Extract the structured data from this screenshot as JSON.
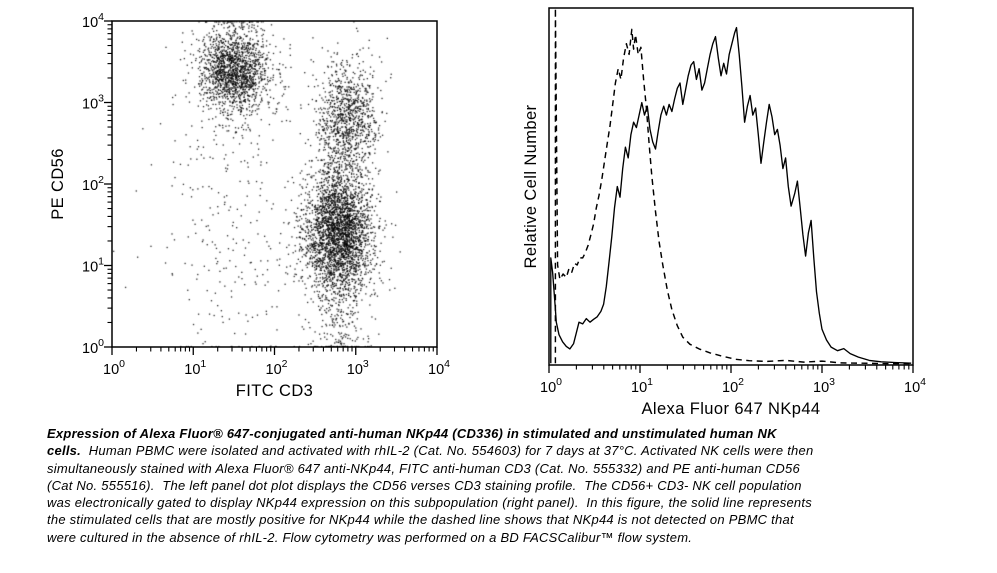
{
  "colors": {
    "ink": "#000000",
    "background": "#ffffff"
  },
  "chart_data": [
    {
      "id": "dot-plot",
      "type": "scatter",
      "xlabel": "FITC CD3",
      "ylabel": "PE CD56",
      "xscale": "log",
      "yscale": "log",
      "xlim": [
        1,
        10000
      ],
      "ylim": [
        1,
        10000
      ],
      "tick_label_base": "10",
      "tick_exponents": [
        0,
        1,
        2,
        3,
        4
      ],
      "grid": false,
      "marker": "dot",
      "seed": 7,
      "clusters": [
        {
          "name": "CD3- CD56+ NK cells (core)",
          "center_log": [
            1.5,
            3.42
          ],
          "sd_log": [
            0.2,
            0.25
          ],
          "count": 1500
        },
        {
          "name": "CD3- CD56+ NK cells (halo)",
          "center_log": [
            1.55,
            3.15
          ],
          "sd_log": [
            0.38,
            0.5
          ],
          "count": 230
        },
        {
          "name": "CD3+ CD56+ T/NKT cells",
          "center_log": [
            2.9,
            2.82
          ],
          "sd_log": [
            0.19,
            0.36
          ],
          "count": 1000
        },
        {
          "name": "CD3+ CD56- T cells (core)",
          "center_log": [
            2.8,
            1.4
          ],
          "sd_log": [
            0.21,
            0.4
          ],
          "count": 2900
        },
        {
          "name": "CD3+ low CD56 pile near axis",
          "center_log": [
            2.78,
            0.18
          ],
          "sd_log": [
            0.18,
            0.28
          ],
          "count": 150
        },
        {
          "name": "scattered background",
          "center_log": [
            1.55,
            1.25
          ],
          "sd_log": [
            0.6,
            0.75
          ],
          "count": 230
        }
      ]
    },
    {
      "id": "histogram",
      "type": "line",
      "xlabel": "Alexa Fluor 647 NKp44",
      "ylabel": "Relative Cell Number",
      "xscale": "log",
      "xlim": [
        1,
        10000
      ],
      "tick_label_base": "10",
      "tick_exponents": [
        0,
        1,
        2,
        3,
        4
      ],
      "grid": false,
      "series": [
        {
          "name": "rhIL-2 stimulated PBMC (solid line)",
          "style": "solid",
          "points": [
            [
              0.02,
              0.005
            ],
            [
              0.02,
              0.3
            ],
            [
              0.04,
              0.26
            ],
            [
              0.06,
              0.19
            ],
            [
              0.08,
              0.12
            ],
            [
              0.11,
              0.085
            ],
            [
              0.15,
              0.065
            ],
            [
              0.19,
              0.052
            ],
            [
              0.23,
              0.045
            ],
            [
              0.27,
              0.06
            ],
            [
              0.3,
              0.09
            ],
            [
              0.33,
              0.12
            ],
            [
              0.37,
              0.115
            ],
            [
              0.41,
              0.13
            ],
            [
              0.45,
              0.12
            ],
            [
              0.49,
              0.128
            ],
            [
              0.53,
              0.135
            ],
            [
              0.57,
              0.15
            ],
            [
              0.6,
              0.17
            ],
            [
              0.63,
              0.22
            ],
            [
              0.66,
              0.29
            ],
            [
              0.69,
              0.36
            ],
            [
              0.72,
              0.44
            ],
            [
              0.75,
              0.5
            ],
            [
              0.78,
              0.47
            ],
            [
              0.81,
              0.55
            ],
            [
              0.84,
              0.61
            ],
            [
              0.87,
              0.58
            ],
            [
              0.9,
              0.645
            ],
            [
              0.93,
              0.68
            ],
            [
              0.96,
              0.665
            ],
            [
              0.99,
              0.7
            ],
            [
              1.02,
              0.735
            ],
            [
              1.05,
              0.7
            ],
            [
              1.08,
              0.725
            ],
            [
              1.11,
              0.66
            ],
            [
              1.14,
              0.625
            ],
            [
              1.17,
              0.605
            ],
            [
              1.2,
              0.655
            ],
            [
              1.23,
              0.7
            ],
            [
              1.26,
              0.725
            ],
            [
              1.29,
              0.7
            ],
            [
              1.32,
              0.73
            ],
            [
              1.35,
              0.71
            ],
            [
              1.38,
              0.745
            ],
            [
              1.41,
              0.775
            ],
            [
              1.44,
              0.79
            ],
            [
              1.47,
              0.73
            ],
            [
              1.5,
              0.77
            ],
            [
              1.53,
              0.81
            ],
            [
              1.56,
              0.84
            ],
            [
              1.59,
              0.85
            ],
            [
              1.62,
              0.8
            ],
            [
              1.65,
              0.83
            ],
            [
              1.68,
              0.77
            ],
            [
              1.71,
              0.79
            ],
            [
              1.74,
              0.83
            ],
            [
              1.77,
              0.87
            ],
            [
              1.8,
              0.9
            ],
            [
              1.83,
              0.92
            ],
            [
              1.86,
              0.86
            ],
            [
              1.89,
              0.81
            ],
            [
              1.92,
              0.845
            ],
            [
              1.95,
              0.815
            ],
            [
              1.98,
              0.87
            ],
            [
              2.01,
              0.9
            ],
            [
              2.04,
              0.93
            ],
            [
              2.06,
              0.945
            ],
            [
              2.09,
              0.87
            ],
            [
              2.12,
              0.78
            ],
            [
              2.15,
              0.68
            ],
            [
              2.18,
              0.725
            ],
            [
              2.21,
              0.755
            ],
            [
              2.24,
              0.7
            ],
            [
              2.27,
              0.72
            ],
            [
              2.3,
              0.645
            ],
            [
              2.33,
              0.565
            ],
            [
              2.36,
              0.625
            ],
            [
              2.39,
              0.68
            ],
            [
              2.42,
              0.73
            ],
            [
              2.45,
              0.695
            ],
            [
              2.48,
              0.645
            ],
            [
              2.51,
              0.66
            ],
            [
              2.54,
              0.615
            ],
            [
              2.57,
              0.55
            ],
            [
              2.6,
              0.58
            ],
            [
              2.63,
              0.5
            ],
            [
              2.66,
              0.445
            ],
            [
              2.7,
              0.48
            ],
            [
              2.73,
              0.515
            ],
            [
              2.76,
              0.44
            ],
            [
              2.79,
              0.365
            ],
            [
              2.82,
              0.305
            ],
            [
              2.85,
              0.37
            ],
            [
              2.88,
              0.405
            ],
            [
              2.91,
              0.3
            ],
            [
              2.94,
              0.205
            ],
            [
              2.97,
              0.145
            ],
            [
              3.0,
              0.1
            ],
            [
              3.05,
              0.07
            ],
            [
              3.1,
              0.05
            ],
            [
              3.17,
              0.04
            ],
            [
              3.24,
              0.046
            ],
            [
              3.31,
              0.032
            ],
            [
              3.4,
              0.022
            ],
            [
              3.52,
              0.013
            ],
            [
              3.65,
              0.009
            ],
            [
              3.8,
              0.007
            ],
            [
              3.98,
              0.005
            ]
          ]
        },
        {
          "name": "unstimulated PBMC control (dashed line)",
          "style": "dashed",
          "points": [
            [
              0.07,
              0.005
            ],
            [
              0.07,
              1.0
            ],
            [
              0.095,
              0.28
            ],
            [
              0.12,
              0.24
            ],
            [
              0.155,
              0.255
            ],
            [
              0.19,
              0.245
            ],
            [
              0.22,
              0.27
            ],
            [
              0.25,
              0.26
            ],
            [
              0.28,
              0.285
            ],
            [
              0.31,
              0.28
            ],
            [
              0.34,
              0.3
            ],
            [
              0.37,
              0.3
            ],
            [
              0.4,
              0.315
            ],
            [
              0.43,
              0.335
            ],
            [
              0.46,
              0.365
            ],
            [
              0.49,
              0.395
            ],
            [
              0.52,
              0.44
            ],
            [
              0.55,
              0.475
            ],
            [
              0.58,
              0.52
            ],
            [
              0.61,
              0.57
            ],
            [
              0.64,
              0.62
            ],
            [
              0.67,
              0.67
            ],
            [
              0.7,
              0.73
            ],
            [
              0.73,
              0.79
            ],
            [
              0.76,
              0.83
            ],
            [
              0.79,
              0.8
            ],
            [
              0.82,
              0.86
            ],
            [
              0.85,
              0.9
            ],
            [
              0.88,
              0.87
            ],
            [
              0.91,
              0.94
            ],
            [
              0.93,
              0.885
            ],
            [
              0.95,
              0.925
            ],
            [
              0.98,
              0.87
            ],
            [
              1.01,
              0.89
            ],
            [
              1.04,
              0.8
            ],
            [
              1.07,
              0.72
            ],
            [
              1.1,
              0.62
            ],
            [
              1.13,
              0.53
            ],
            [
              1.17,
              0.43
            ],
            [
              1.21,
              0.345
            ],
            [
              1.25,
              0.28
            ],
            [
              1.3,
              0.21
            ],
            [
              1.35,
              0.155
            ],
            [
              1.41,
              0.11
            ],
            [
              1.47,
              0.078
            ],
            [
              1.55,
              0.058
            ],
            [
              1.65,
              0.045
            ],
            [
              1.77,
              0.034
            ],
            [
              1.9,
              0.025
            ],
            [
              2.05,
              0.016
            ],
            [
              2.2,
              0.012
            ],
            [
              2.4,
              0.01
            ],
            [
              2.6,
              0.013
            ],
            [
              2.8,
              0.008
            ],
            [
              3.0,
              0.011
            ],
            [
              3.2,
              0.006
            ],
            [
              3.45,
              0.005
            ],
            [
              3.7,
              0.004
            ],
            [
              3.98,
              0.004
            ]
          ]
        }
      ]
    }
  ],
  "caption": {
    "lines": [
      {
        "bold": "Expression of Alexa Fluor® 647-conjugated anti-human NKp44 (CD336) in stimulated and unstimulated human NK",
        "text": ""
      },
      {
        "bold": "cells.",
        "text": "  Human PBMC were isolated and activated with rhIL-2 (Cat. No. 554603) for 7 days at 37°C. Activated NK cells were then"
      },
      {
        "bold": "",
        "text": "simultaneously stained with Alexa Fluor® 647 anti-NKp44, FITC anti-human CD3 (Cat. No. 555332) and PE anti-human CD56"
      },
      {
        "bold": "",
        "text": "(Cat No. 555516).  The left panel dot plot displays the CD56 verses CD3 staining profile.  The CD56+ CD3- NK cell population"
      },
      {
        "bold": "",
        "text": "was electronically gated to display NKp44 expression on this subpopulation (right panel).  In this figure, the solid line represents"
      },
      {
        "bold": "",
        "text": "the stimulated cells that are mostly positive for NKp44 while the dashed line shows that NKp44 is not detected on PBMC that"
      },
      {
        "bold": "",
        "text": "were cultured in the absence of rhIL-2. Flow cytometry was performed on a BD FACSCalibur™ flow system."
      }
    ]
  }
}
